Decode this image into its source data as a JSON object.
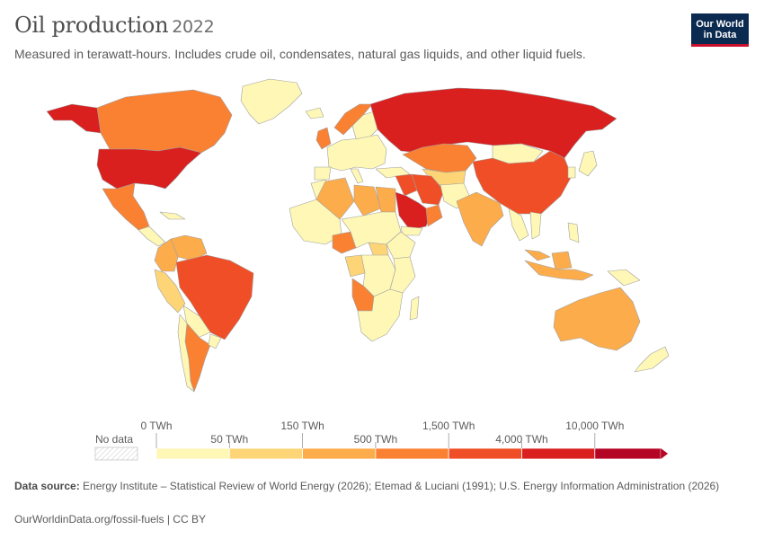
{
  "title": "Oil production",
  "year": "2022",
  "subtitle": "Measured in terawatt-hours. Includes crude oil, condensates, natural gas liquids, and other liquid fuels.",
  "logo": {
    "line1": "Our World",
    "line2": "in Data"
  },
  "legend": {
    "no_data_label": "No data",
    "bins": [
      {
        "from": "0 TWh",
        "to": "50 TWh",
        "color": "#fef7b5"
      },
      {
        "from": "50 TWh",
        "to": "150 TWh",
        "color": "#fdd577"
      },
      {
        "from": "150 TWh",
        "to": "500 TWh",
        "color": "#fdac4b"
      },
      {
        "from": "500 TWh",
        "to": "1,500 TWh",
        "color": "#fa8032"
      },
      {
        "from": "1,500 TWh",
        "to": "4,000 TWh",
        "color": "#f04e26"
      },
      {
        "from": "4,000 TWh",
        "to": "10,000 TWh",
        "color": "#da1f1f"
      },
      {
        "from": "10,000 TWh",
        "to": "",
        "color": "#b50525"
      }
    ],
    "labels_top": [
      "0 TWh",
      "150 TWh",
      "1,500 TWh",
      "10,000 TWh"
    ],
    "labels_bottom": [
      "50 TWh",
      "500 TWh",
      "4,000 TWh"
    ]
  },
  "map_colors": {
    "ocean": "#ffffff",
    "border": "#a0a0a0",
    "bin1": "#fef7b5",
    "bin2": "#fdd577",
    "bin3": "#fdac4b",
    "bin4": "#fa8032",
    "bin5": "#f04e26",
    "bin6": "#da1f1f"
  },
  "source": {
    "label": "Data source:",
    "text": "Energy Institute – Statistical Review of World Energy (2026); Etemad & Luciani (1991); U.S. Energy Information Administration (2026)"
  },
  "footer_link": "OurWorldinData.org/fossil-fuels | CC BY"
}
